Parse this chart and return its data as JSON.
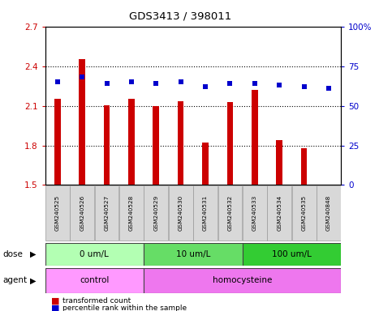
{
  "title": "GDS3413 / 398011",
  "samples": [
    "GSM240525",
    "GSM240526",
    "GSM240527",
    "GSM240528",
    "GSM240529",
    "GSM240530",
    "GSM240531",
    "GSM240532",
    "GSM240533",
    "GSM240534",
    "GSM240535",
    "GSM240848"
  ],
  "red_values": [
    2.155,
    2.455,
    2.105,
    2.155,
    2.1,
    2.135,
    1.82,
    2.13,
    2.22,
    1.84,
    1.78,
    1.505
  ],
  "blue_values": [
    65,
    68,
    64,
    65,
    64,
    65,
    62,
    64,
    64,
    63,
    62,
    61
  ],
  "ylim_left": [
    1.5,
    2.7
  ],
  "ylim_right": [
    0,
    100
  ],
  "yticks_left": [
    1.5,
    1.8,
    2.1,
    2.4,
    2.7
  ],
  "yticks_right": [
    0,
    25,
    50,
    75,
    100
  ],
  "bar_color": "#cc0000",
  "dot_color": "#0000cc",
  "dose_groups": [
    {
      "label": "0 um/L",
      "start": 0,
      "end": 4,
      "color": "#b3ffb3"
    },
    {
      "label": "10 um/L",
      "start": 4,
      "end": 8,
      "color": "#66dd66"
    },
    {
      "label": "100 um/L",
      "start": 8,
      "end": 12,
      "color": "#33cc33"
    }
  ],
  "agent_groups": [
    {
      "label": "control",
      "start": 0,
      "end": 4,
      "color": "#ff99ff"
    },
    {
      "label": "homocysteine",
      "start": 4,
      "end": 12,
      "color": "#ee77ee"
    }
  ],
  "legend_red": "transformed count",
  "legend_blue": "percentile rank within the sample",
  "bg_color": "#ffffff",
  "plot_bg": "#ffffff",
  "tick_label_color_left": "#cc0000",
  "tick_label_color_right": "#0000cc",
  "base_value": 1.5,
  "sample_box_color": "#d8d8d8",
  "sample_box_edge": "#999999"
}
